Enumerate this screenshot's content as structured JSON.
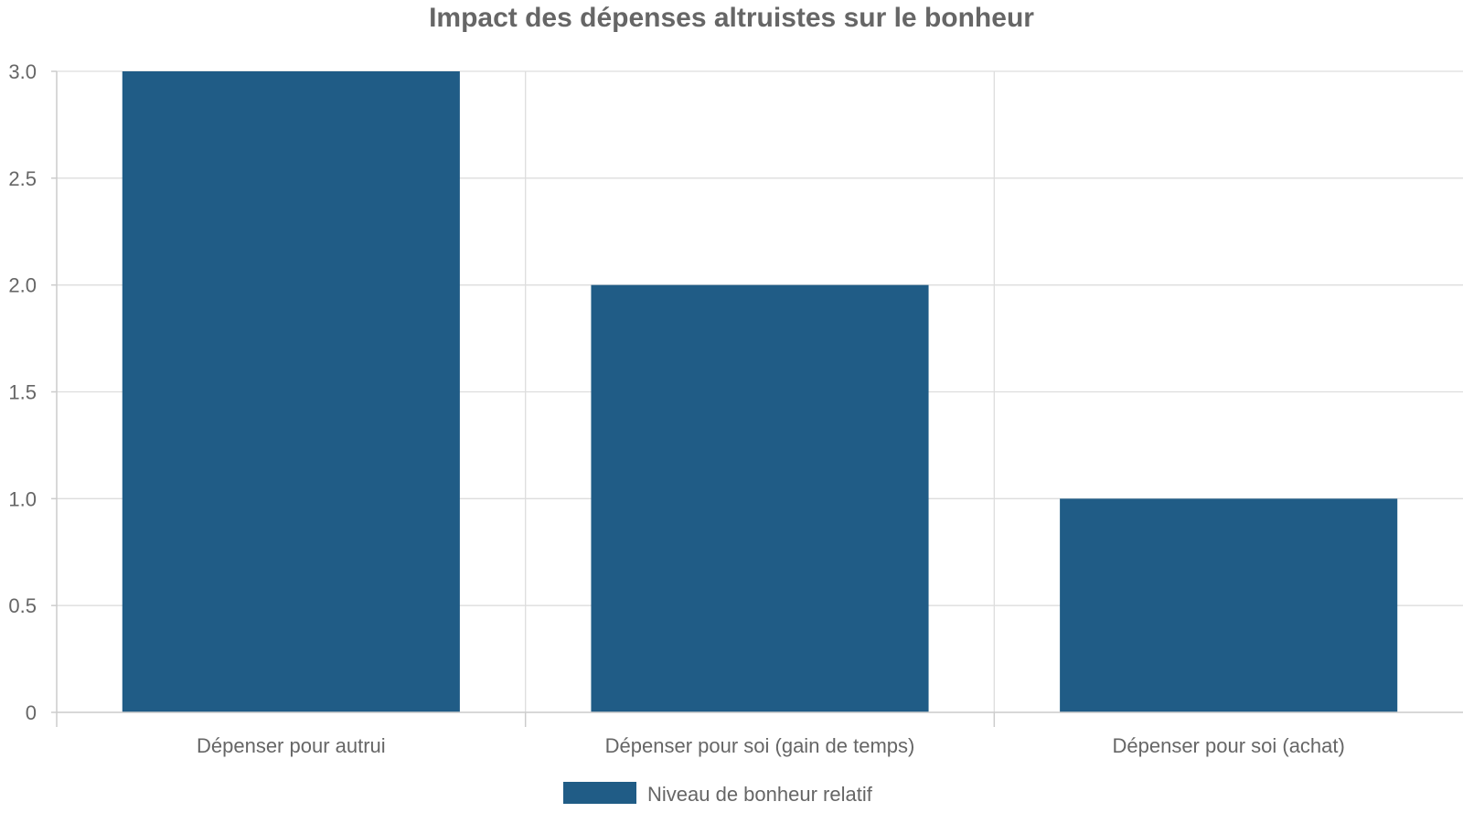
{
  "chart_data": {
    "type": "bar",
    "title": "Impact des dépenses altruistes sur le bonheur",
    "categories": [
      "Dépenser pour autrui",
      "Dépenser pour soi (gain de temps)",
      "Dépenser pour soi (achat)"
    ],
    "series": [
      {
        "name": "Niveau de bonheur relatif",
        "values": [
          3,
          2,
          1
        ],
        "color": "#205c86"
      }
    ],
    "ylim": [
      0,
      3
    ],
    "yticks": [
      "0",
      "0.5",
      "1.0",
      "1.5",
      "2.0",
      "2.5",
      "3.0"
    ],
    "ytick_values": [
      0,
      0.5,
      1,
      1.5,
      2,
      2.5,
      3
    ],
    "xlabel": "",
    "ylabel": "",
    "grid": true,
    "legend_position": "bottom-center"
  }
}
